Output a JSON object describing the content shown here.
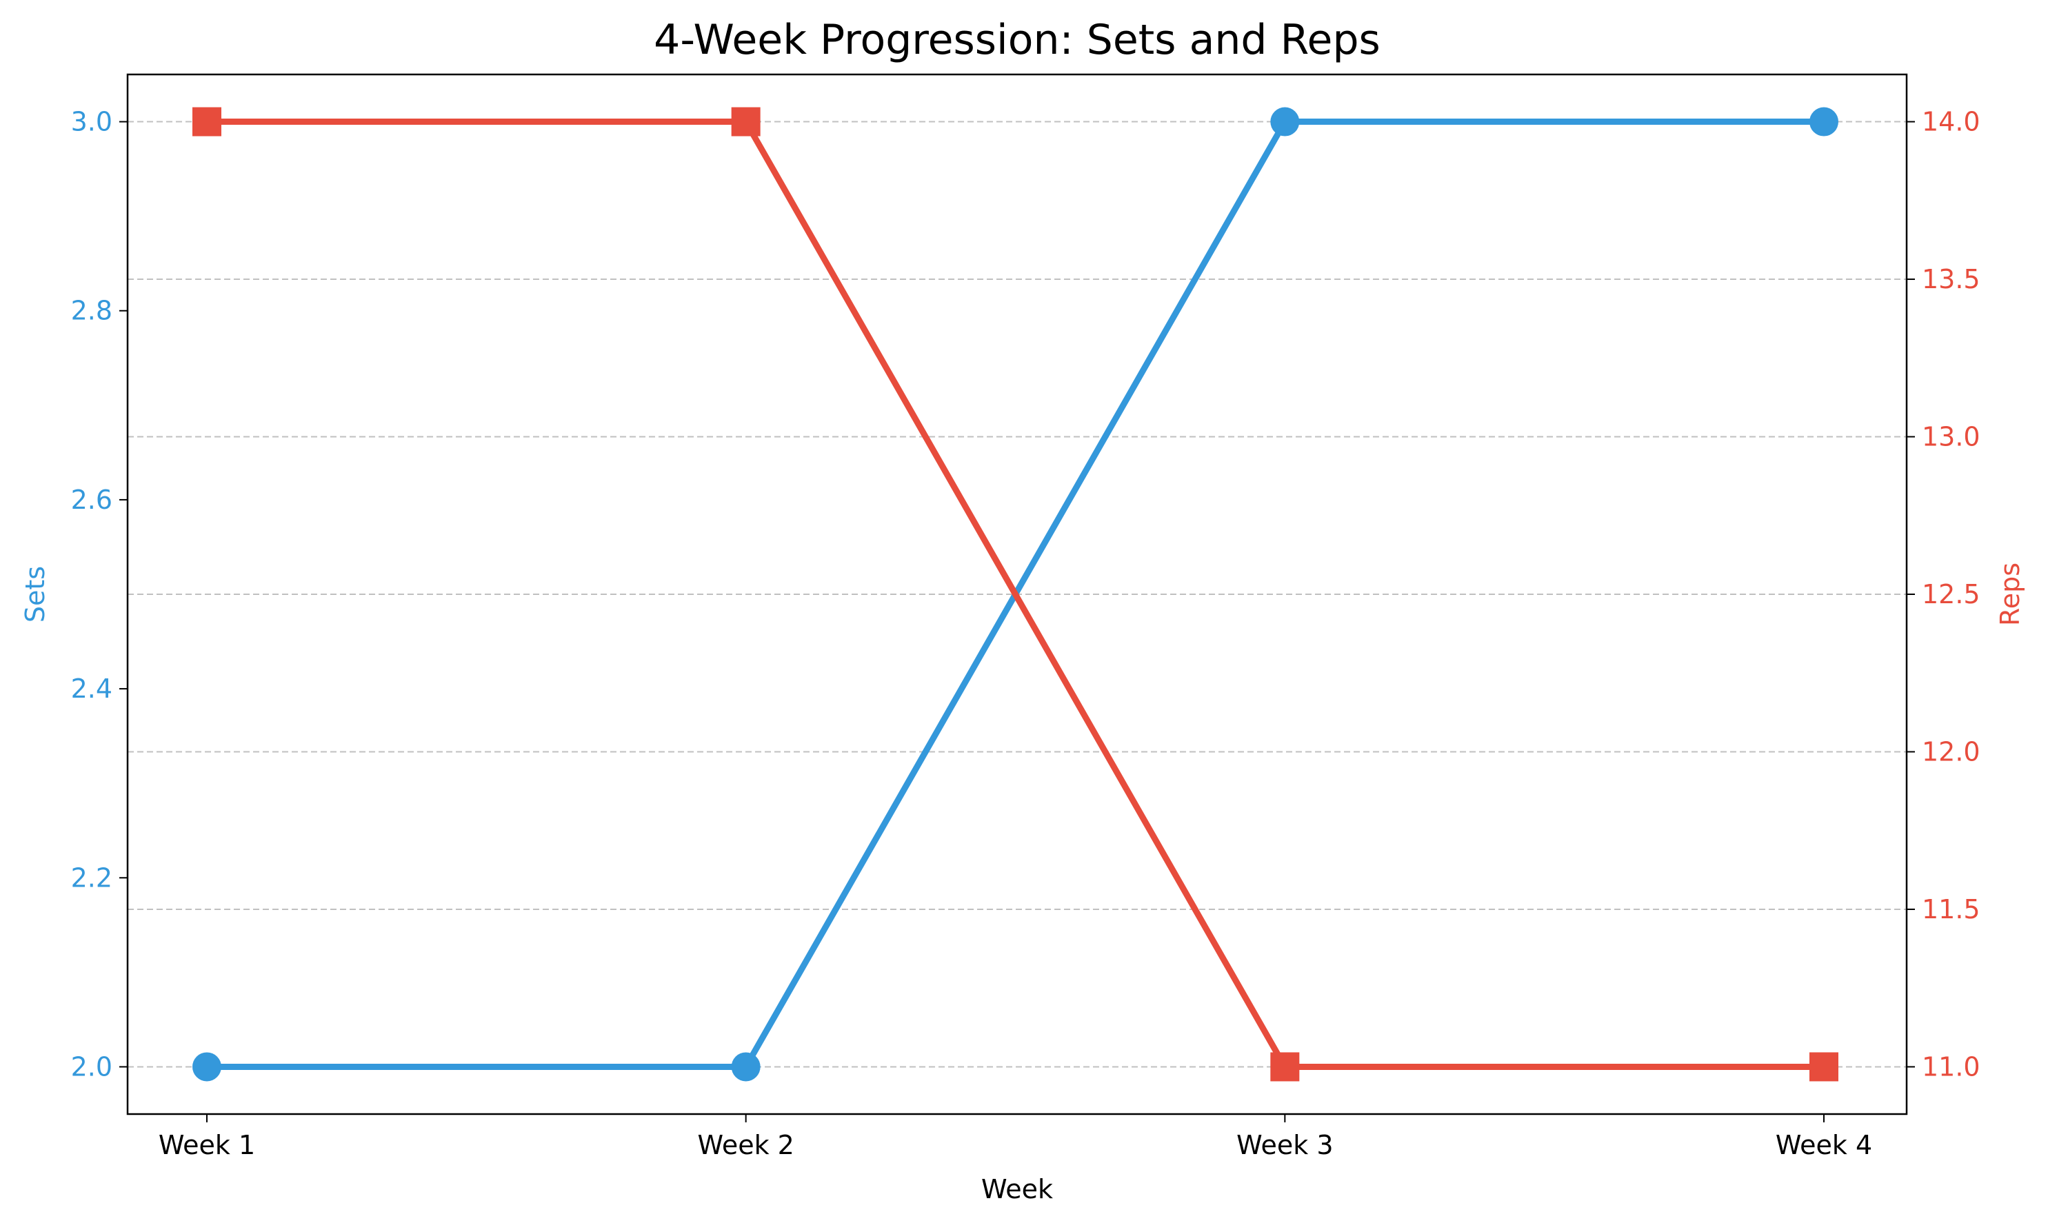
{
  "colors": {
    "sets": "#3498db",
    "reps": "#e74c3c",
    "axis": "#000000",
    "grid": "#c0c0c0"
  },
  "chart_data": {
    "type": "line",
    "title": "4-Week Progression: Sets and Reps",
    "xlabel": "Week",
    "categories": [
      "Week 1",
      "Week 2",
      "Week 3",
      "Week 4"
    ],
    "grid": "horizontal dashed (right axis)",
    "left_axis": {
      "label": "Sets",
      "ylim": [
        1.95,
        3.05
      ],
      "ticks": [
        "2.0",
        "2.2",
        "2.4",
        "2.6",
        "2.8",
        "3.0"
      ],
      "tick_values": [
        2.0,
        2.2,
        2.4,
        2.6,
        2.8,
        3.0
      ]
    },
    "right_axis": {
      "label": "Reps",
      "ylim": [
        10.85,
        14.15
      ],
      "ticks": [
        "11.0",
        "11.5",
        "12.0",
        "12.5",
        "13.0",
        "13.5",
        "14.0"
      ],
      "tick_values": [
        11.0,
        11.5,
        12.0,
        12.5,
        13.0,
        13.5,
        14.0
      ]
    },
    "series": [
      {
        "name": "Sets",
        "axis": "left",
        "marker": "circle",
        "values": [
          2,
          2,
          3,
          3
        ]
      },
      {
        "name": "Reps",
        "axis": "right",
        "marker": "square",
        "values": [
          14,
          14,
          11,
          11
        ]
      }
    ]
  }
}
